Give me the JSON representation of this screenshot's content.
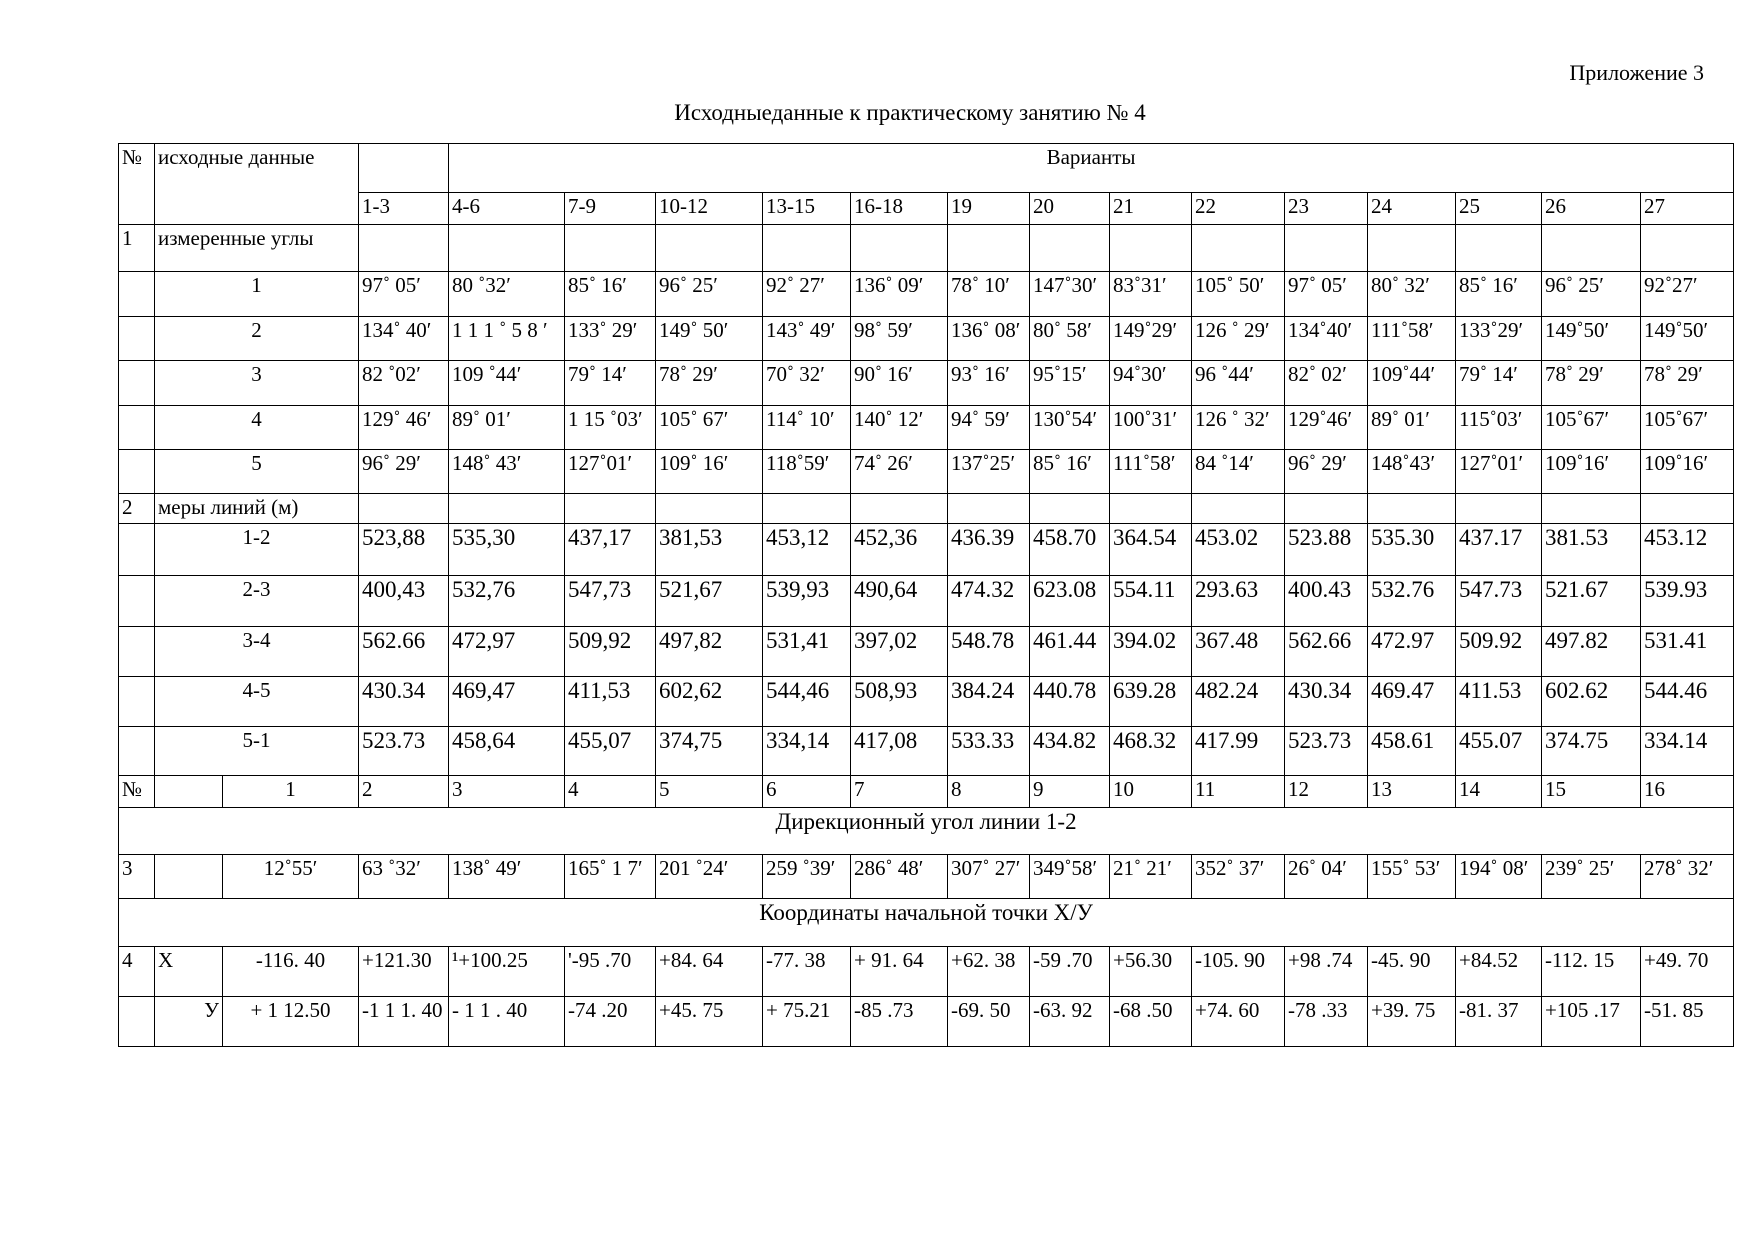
{
  "header": {
    "appendix": "Приложение 3",
    "title": "Исходныеданные к практическому занятию № 4"
  },
  "table": {
    "no_header": "№",
    "source_header": "исходные данные",
    "variants_header": "Варианты",
    "variants": [
      "1-3",
      "4-6",
      "7-9",
      "10-12",
      "13-15",
      "16-18",
      "19",
      "20",
      "21",
      "22",
      "23",
      "24",
      "25",
      "26",
      "27"
    ],
    "angles": {
      "number": "1",
      "label": "измеренные углы",
      "rows": [
        {
          "label": "1",
          "values": [
            "97˚ 05′",
            "80 ˚32′",
            "85˚ 16′",
            "96˚ 25′",
            "92˚ 27′",
            "136˚ 09′",
            "78˚ 10′",
            "147˚30′",
            "83˚31′",
            "105˚ 50′",
            "97˚ 05′",
            "80˚ 32′",
            "85˚ 16′",
            "96˚ 25′",
            "92˚27′"
          ]
        },
        {
          "label": "2",
          "values": [
            "134˚ 40′",
            "1 1 1 ˚ 5 8 ′",
            "133˚ 29′",
            "149˚ 50′",
            "143˚ 49′",
            "98˚ 59′",
            "136˚ 08′",
            "80˚ 58′",
            "149˚29′",
            "126 ˚ 29′",
            "134˚40′",
            "111˚58′",
            "133˚29′",
            "149˚50′",
            "149˚50′"
          ]
        },
        {
          "label": "3",
          "values": [
            "82 ˚02′",
            "109 ˚44′",
            "79˚ 14′",
            "78˚ 29′",
            "70˚ 32′",
            "90˚ 16′",
            "93˚ 16′",
            "95˚15′",
            "94˚30′",
            "96 ˚44′",
            "82˚ 02′",
            "109˚44′",
            "79˚ 14′",
            "78˚ 29′",
            "78˚ 29′"
          ]
        },
        {
          "label": "4",
          "values": [
            "129˚ 46′",
            "89˚ 01′",
            "1 15 ˚03′",
            "105˚ 67′",
            "114˚ 10′",
            "140˚ 12′",
            "94˚ 59′",
            "130˚54′",
            "100˚31′",
            "126 ˚ 32′",
            "129˚46′",
            "89˚ 01′",
            "115˚03′",
            "105˚67′",
            "105˚67′"
          ]
        },
        {
          "label": "5",
          "values": [
            "96˚ 29′",
            "148˚ 43′",
            "127˚01′",
            "109˚ 16′",
            "118˚59′",
            "74˚ 26′",
            "137˚25′",
            "85˚ 16′",
            "111˚58′",
            "84 ˚14′",
            "96˚ 29′",
            "148˚43′",
            "127˚01′",
            "109˚16′",
            "109˚16′"
          ]
        }
      ]
    },
    "lines": {
      "number": "2",
      "label": "меры линий (м)",
      "rows": [
        {
          "label": "1-2",
          "values": [
            "523,88",
            "535,30",
            "437,17",
            "381,53",
            "453,12",
            "452,36",
            "436.39",
            "458.70",
            "364.54",
            "453.02",
            "523.88",
            "535.30",
            "437.17",
            "381.53",
            "453.12"
          ]
        },
        {
          "label": "2-3",
          "values": [
            "400,43",
            "532,76",
            "547,73",
            "521,67",
            "539,93",
            "490,64",
            "474.32",
            "623.08",
            "554.11",
            "293.63",
            "400.43",
            "532.76",
            "547.73",
            "521.67",
            "539.93"
          ]
        },
        {
          "label": "3-4",
          "values": [
            "562.66",
            "472,97",
            "509,92",
            "497,82",
            "531,41",
            "397,02",
            "548.78",
            "461.44",
            "394.02",
            "367.48",
            "562.66",
            "472.97",
            "509.92",
            "497.82",
            "531.41"
          ]
        },
        {
          "label": "4-5",
          "values": [
            "430.34",
            "469,47",
            "411,53",
            "602,62",
            "544,46",
            "508,93",
            "384.24",
            "440.78",
            "639.28",
            "482.24",
            "430.34",
            "469.47",
            "411.53",
            "602.62",
            "544.46"
          ]
        },
        {
          "label": "5-1",
          "values": [
            "523.73",
            "458,64",
            "455,07",
            "374,75",
            "334,14",
            "417,08",
            "533.33",
            "434.82",
            "468.32",
            "417.99",
            "523.73",
            "458.61",
            "455.07",
            "374.75",
            "334.14"
          ]
        }
      ]
    },
    "index_row": {
      "no": "№",
      "label": "1",
      "values": [
        "2",
        "3",
        "4",
        "5",
        "6",
        "7",
        "8",
        "9",
        "10",
        "11",
        "12",
        "13",
        "14",
        "15",
        "16"
      ]
    },
    "direction": {
      "heading": "Дирекционный угол линии 1-2",
      "number": "3",
      "label": "12˚55′",
      "values": [
        "63 ˚32′",
        "138˚ 49′",
        "165˚ 1 7′",
        "201 ˚24′",
        "259 ˚39′",
        "286˚ 48′",
        "307˚ 27′",
        "349˚58′",
        "21˚ 21′",
        "352˚ 37′",
        "26˚ 04′",
        "155˚ 53′",
        "194˚ 08′",
        "239˚ 25′",
        "278˚ 32′"
      ]
    },
    "coords": {
      "heading": "Координаты начальной точки Х/У",
      "number": "4",
      "x": {
        "axis": "Х",
        "label": "-116. 40",
        "values": [
          "+121.30",
          "¹+100.25",
          "'-95 .70",
          "+84. 64",
          "-77. 38",
          "+ 91. 64",
          "+62. 38",
          "-59 .70",
          "+56.30",
          "-105. 90",
          "+98 .74",
          "-45. 90",
          "+84.52",
          "-112. 15",
          "+49. 70"
        ]
      },
      "y": {
        "axis": "У",
        "label": "+ 1 12.50",
        "values": [
          "-1 1 1. 40",
          "- 1 1 .  40",
          "-74 .20",
          "+45. 75",
          "+ 75.21",
          "-85 .73",
          "-69. 50",
          "-63. 92",
          "-68 .50",
          "+74. 60",
          "-78 .33",
          "+39. 75",
          "-81. 37",
          "+105 .17",
          "-51. 85"
        ]
      }
    }
  }
}
